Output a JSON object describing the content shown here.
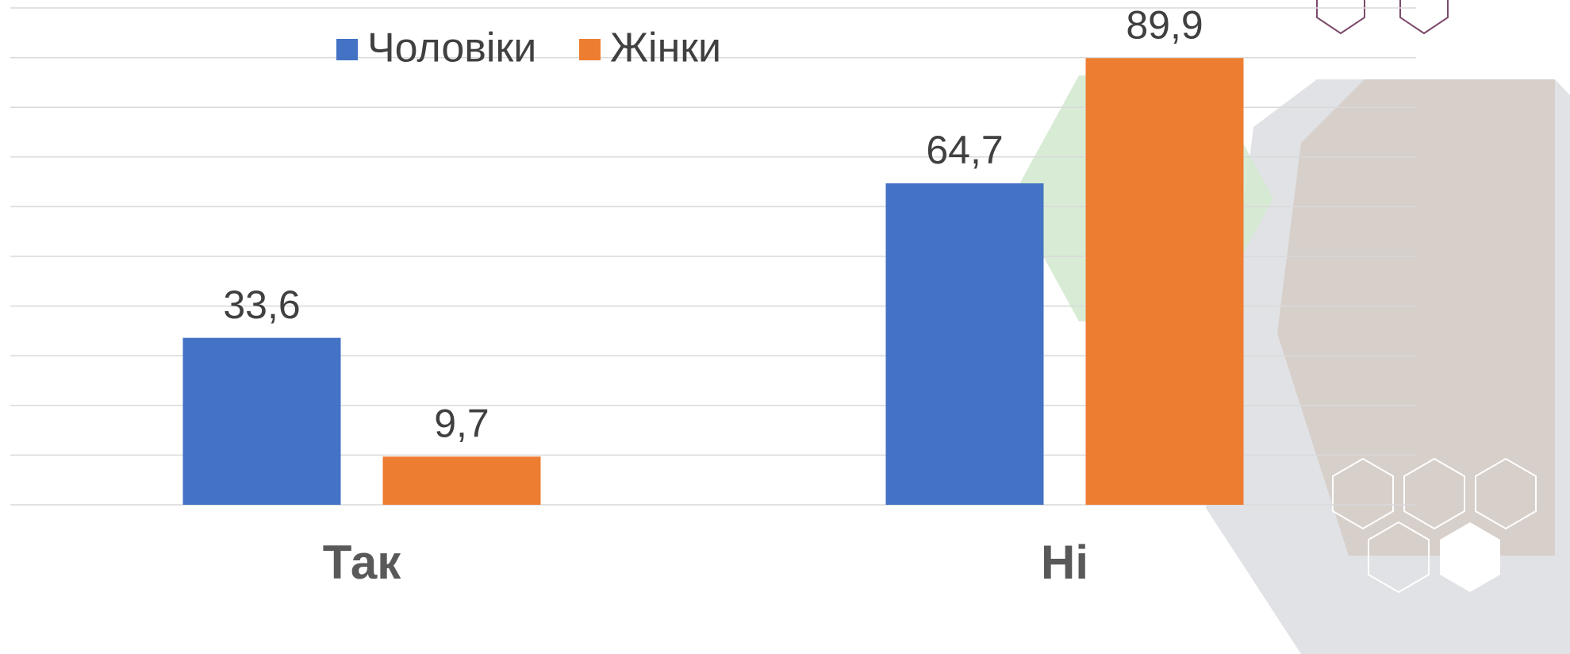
{
  "chart_data": {
    "type": "bar",
    "categories": [
      "Так",
      "Ні"
    ],
    "series": [
      {
        "name": "Чоловіки",
        "color": "#4472c4",
        "values": [
          33.6,
          64.7
        ],
        "value_labels": [
          "33,6",
          "64,7"
        ]
      },
      {
        "name": "Жінки",
        "color": "#ed7d31",
        "values": [
          9.7,
          89.9
        ],
        "value_labels": [
          "9,7",
          "89,9"
        ]
      }
    ],
    "ylim": [
      0,
      100
    ],
    "yticks": [
      0,
      10,
      20,
      30,
      40,
      50,
      60,
      70,
      80,
      90,
      100
    ],
    "grid": true,
    "legend": "top"
  }
}
